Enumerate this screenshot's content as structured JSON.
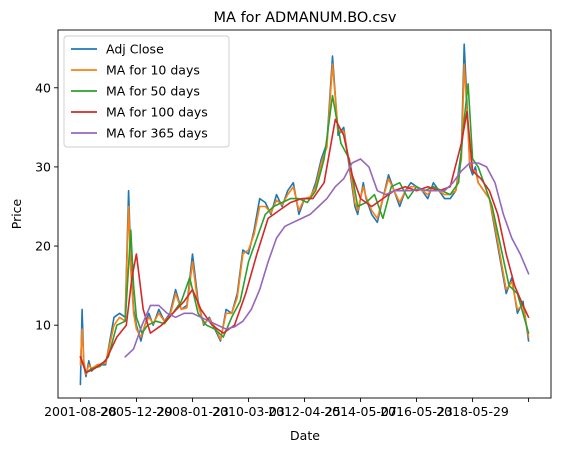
{
  "chart_data": {
    "type": "line",
    "title": "MA for ADMANUM.BO.csv",
    "xlabel": "Date",
    "ylabel": "Price",
    "x_ticks": [
      "2001-08-28",
      "2005-12-29",
      "2008-01-23",
      "2010-03-03",
      "2012-04-25",
      "2014-05-07",
      "2016-05-23",
      "2018-05-29",
      ""
    ],
    "x_tick_positions": [
      0,
      1,
      2,
      3,
      4,
      5,
      6,
      7,
      8
    ],
    "xlim": [
      -0.4,
      8.4
    ],
    "y_ticks": [
      10,
      20,
      30,
      40
    ],
    "ylim": [
      0.8,
      47.3
    ],
    "grid": false,
    "legend_position": "top-left",
    "series": [
      {
        "name": "Adj Close",
        "color": "#1f77b4",
        "x": [
          0.0,
          0.03,
          0.06,
          0.1,
          0.15,
          0.2,
          0.3,
          0.45,
          0.6,
          0.7,
          0.8,
          0.86,
          0.9,
          0.95,
          1.0,
          1.08,
          1.15,
          1.22,
          1.3,
          1.4,
          1.5,
          1.6,
          1.7,
          1.8,
          1.9,
          2.0,
          2.1,
          2.2,
          2.3,
          2.4,
          2.5,
          2.6,
          2.7,
          2.8,
          2.9,
          3.0,
          3.1,
          3.2,
          3.3,
          3.4,
          3.5,
          3.6,
          3.7,
          3.8,
          3.9,
          4.0,
          4.1,
          4.2,
          4.3,
          4.4,
          4.5,
          4.6,
          4.7,
          4.8,
          4.9,
          4.95,
          5.0,
          5.05,
          5.1,
          5.2,
          5.3,
          5.4,
          5.5,
          5.6,
          5.7,
          5.8,
          5.9,
          6.0,
          6.1,
          6.2,
          6.3,
          6.4,
          6.5,
          6.6,
          6.7,
          6.8,
          6.85,
          6.9,
          6.95,
          7.0,
          7.05,
          7.1,
          7.2,
          7.3,
          7.4,
          7.5,
          7.6,
          7.7,
          7.8,
          7.9,
          8.0
        ],
        "values": [
          2.5,
          12.0,
          5.0,
          3.5,
          5.5,
          4.2,
          5.0,
          5.0,
          11.0,
          11.5,
          11.0,
          27.0,
          18.0,
          12.0,
          10.0,
          8.0,
          10.0,
          11.5,
          10.0,
          12.0,
          10.5,
          11.5,
          14.5,
          12.0,
          12.5,
          19.0,
          13.0,
          10.0,
          11.0,
          9.5,
          8.0,
          12.0,
          11.5,
          14.0,
          19.5,
          19.0,
          22.0,
          26.0,
          25.5,
          24.0,
          26.5,
          25.0,
          27.0,
          28.0,
          24.0,
          26.0,
          26.0,
          28.0,
          31.0,
          33.0,
          44.0,
          34.0,
          35.0,
          30.0,
          25.0,
          24.0,
          26.0,
          28.0,
          26.0,
          24.0,
          23.0,
          26.0,
          29.0,
          27.0,
          25.0,
          27.0,
          28.0,
          27.5,
          27.0,
          26.0,
          28.0,
          27.0,
          26.0,
          26.0,
          27.0,
          32.0,
          45.5,
          38.0,
          30.0,
          29.0,
          30.0,
          28.0,
          27.0,
          26.0,
          22.0,
          18.0,
          14.0,
          16.0,
          11.5,
          13.0,
          8.0
        ]
      },
      {
        "name": "MA for 10 days",
        "color": "#ff7f0e",
        "x": [
          0.0,
          0.03,
          0.06,
          0.1,
          0.15,
          0.2,
          0.3,
          0.45,
          0.6,
          0.7,
          0.8,
          0.86,
          0.9,
          0.95,
          1.0,
          1.08,
          1.15,
          1.22,
          1.3,
          1.4,
          1.5,
          1.6,
          1.7,
          1.8,
          1.9,
          2.0,
          2.1,
          2.2,
          2.3,
          2.4,
          2.5,
          2.6,
          2.7,
          2.8,
          2.9,
          3.0,
          3.1,
          3.2,
          3.3,
          3.4,
          3.5,
          3.6,
          3.7,
          3.8,
          3.9,
          4.0,
          4.1,
          4.2,
          4.3,
          4.4,
          4.5,
          4.6,
          4.7,
          4.8,
          4.9,
          4.95,
          5.0,
          5.05,
          5.1,
          5.2,
          5.3,
          5.4,
          5.5,
          5.6,
          5.7,
          5.8,
          5.9,
          6.0,
          6.1,
          6.2,
          6.3,
          6.4,
          6.5,
          6.6,
          6.7,
          6.8,
          6.85,
          6.9,
          6.95,
          7.0,
          7.05,
          7.1,
          7.2,
          7.3,
          7.4,
          7.5,
          7.6,
          7.7,
          7.8,
          7.9,
          8.0
        ],
        "values": [
          5.0,
          9.5,
          5.5,
          3.8,
          5.0,
          4.5,
          5.0,
          5.2,
          10.0,
          11.0,
          10.5,
          25.0,
          17.0,
          11.5,
          9.5,
          8.5,
          10.0,
          11.0,
          10.2,
          11.5,
          10.5,
          11.2,
          14.0,
          12.0,
          12.2,
          18.0,
          12.5,
          10.2,
          10.8,
          9.8,
          8.2,
          11.5,
          11.5,
          13.5,
          19.0,
          19.5,
          21.5,
          25.0,
          25.0,
          24.2,
          25.8,
          25.2,
          26.5,
          27.5,
          24.5,
          26.0,
          26.2,
          27.5,
          30.5,
          32.5,
          43.0,
          34.5,
          34.5,
          30.5,
          25.5,
          24.5,
          26.0,
          27.5,
          26.2,
          24.5,
          23.5,
          26.0,
          28.5,
          27.0,
          25.5,
          27.0,
          27.5,
          27.5,
          27.0,
          26.5,
          27.5,
          27.0,
          26.5,
          26.5,
          27.0,
          31.0,
          43.0,
          37.0,
          30.5,
          29.5,
          29.5,
          28.0,
          27.0,
          26.0,
          22.5,
          18.5,
          14.5,
          15.5,
          12.0,
          12.5,
          8.5
        ]
      },
      {
        "name": "MA for 50 days",
        "color": "#2ca02c",
        "x": [
          0.0,
          0.1,
          0.2,
          0.35,
          0.5,
          0.65,
          0.8,
          0.9,
          0.95,
          1.0,
          1.1,
          1.2,
          1.35,
          1.5,
          1.65,
          1.8,
          1.95,
          2.1,
          2.25,
          2.4,
          2.55,
          2.7,
          2.85,
          3.0,
          3.15,
          3.3,
          3.45,
          3.6,
          3.75,
          3.9,
          4.05,
          4.2,
          4.35,
          4.5,
          4.65,
          4.8,
          4.95,
          5.1,
          5.25,
          5.4,
          5.55,
          5.7,
          5.85,
          6.0,
          6.15,
          6.3,
          6.45,
          6.6,
          6.75,
          6.85,
          6.92,
          7.0,
          7.1,
          7.2,
          7.35,
          7.5,
          7.65,
          7.8,
          8.0
        ],
        "values": [
          6.0,
          4.0,
          4.5,
          4.8,
          6.0,
          10.0,
          10.5,
          22.0,
          15.0,
          11.0,
          9.0,
          10.0,
          10.5,
          10.2,
          11.5,
          13.0,
          16.0,
          11.5,
          10.0,
          9.5,
          8.5,
          11.0,
          13.0,
          18.0,
          21.0,
          24.0,
          25.0,
          25.5,
          26.0,
          26.0,
          25.5,
          27.0,
          31.0,
          39.0,
          33.0,
          31.0,
          25.0,
          25.5,
          26.5,
          23.5,
          27.5,
          28.0,
          26.0,
          27.5,
          27.0,
          27.5,
          27.0,
          26.5,
          28.0,
          36.0,
          40.5,
          31.0,
          30.0,
          28.0,
          25.0,
          20.0,
          15.0,
          14.0,
          9.0
        ]
      },
      {
        "name": "MA for 100 days",
        "color": "#d62728",
        "x": [
          0.0,
          0.1,
          0.25,
          0.45,
          0.65,
          0.82,
          0.92,
          1.0,
          1.12,
          1.25,
          1.45,
          1.65,
          1.85,
          2.0,
          2.15,
          2.35,
          2.55,
          2.75,
          2.95,
          3.15,
          3.35,
          3.55,
          3.75,
          3.95,
          4.15,
          4.35,
          4.55,
          4.7,
          4.85,
          5.0,
          5.2,
          5.4,
          5.6,
          5.8,
          6.0,
          6.2,
          6.4,
          6.6,
          6.8,
          6.9,
          7.0,
          7.15,
          7.3,
          7.45,
          7.6,
          7.75,
          7.9,
          8.0
        ],
        "values": [
          6.0,
          4.0,
          4.5,
          5.5,
          8.5,
          10.0,
          16.0,
          19.0,
          12.0,
          9.0,
          10.0,
          11.5,
          13.0,
          14.5,
          12.0,
          10.0,
          9.0,
          10.0,
          14.0,
          19.0,
          23.5,
          24.5,
          25.5,
          26.0,
          26.0,
          28.0,
          36.0,
          34.0,
          29.0,
          26.0,
          25.0,
          26.0,
          27.0,
          27.5,
          27.0,
          27.5,
          27.0,
          27.5,
          33.0,
          37.0,
          29.5,
          28.5,
          27.0,
          24.0,
          19.0,
          15.0,
          12.5,
          11.0
        ]
      },
      {
        "name": "MA for 365 days",
        "color": "#9467bd",
        "x": [
          0.8,
          0.95,
          1.1,
          1.25,
          1.4,
          1.55,
          1.7,
          1.85,
          2.0,
          2.15,
          2.3,
          2.45,
          2.6,
          2.75,
          2.9,
          3.05,
          3.2,
          3.35,
          3.5,
          3.65,
          3.8,
          3.95,
          4.1,
          4.25,
          4.4,
          4.55,
          4.7,
          4.85,
          5.0,
          5.15,
          5.3,
          5.45,
          5.6,
          5.75,
          5.9,
          6.05,
          6.2,
          6.35,
          6.5,
          6.65,
          6.8,
          6.95,
          7.1,
          7.25,
          7.4,
          7.55,
          7.7,
          7.85,
          8.0
        ],
        "values": [
          6.0,
          7.0,
          10.0,
          12.5,
          12.5,
          11.5,
          11.0,
          11.5,
          11.5,
          11.0,
          10.5,
          10.0,
          9.5,
          9.8,
          10.5,
          12.0,
          14.5,
          18.0,
          21.0,
          22.5,
          23.0,
          23.5,
          24.0,
          25.0,
          26.0,
          27.5,
          28.5,
          30.5,
          31.0,
          30.0,
          27.0,
          26.5,
          27.0,
          27.0,
          27.0,
          27.2,
          27.0,
          27.0,
          27.0,
          28.0,
          29.5,
          30.5,
          30.5,
          30.0,
          28.0,
          24.0,
          21.0,
          19.0,
          16.5
        ]
      }
    ]
  }
}
